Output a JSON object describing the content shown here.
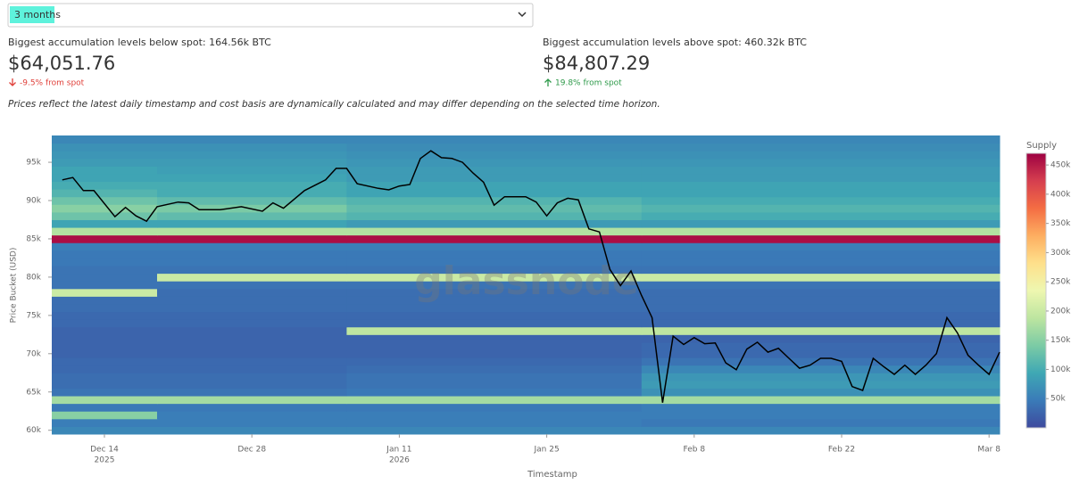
{
  "dropdown": {
    "selected": "3 months"
  },
  "below": {
    "label": "Biggest accumulation levels below spot: 164.56k BTC",
    "price": "$64,051.76",
    "change": "-9.5% from spot"
  },
  "above": {
    "label": "Biggest accumulation levels above spot: 460.32k BTC",
    "price": "$84,807.29",
    "change": "19.8% from spot"
  },
  "note": "Prices reflect the latest daily timestamp and cost basis are dynamically calculated and may differ depending on the selected time horizon.",
  "chart_data": {
    "type": "heatmap",
    "watermark": "glassnode",
    "xlabel": "Timestamp",
    "ylabel": "Price Bucket (USD)",
    "xlim": [
      "2025-12-09",
      "2026-03-09"
    ],
    "xticks": [
      {
        "value": "2025-12-14",
        "label": "Dec 14",
        "sublabel": "2025"
      },
      {
        "value": "2025-12-28",
        "label": "Dec 28"
      },
      {
        "value": "2026-01-11",
        "label": "Jan 11",
        "sublabel": "2026"
      },
      {
        "value": "2026-01-25",
        "label": "Jan 25"
      },
      {
        "value": "2026-02-08",
        "label": "Feb 8"
      },
      {
        "value": "2026-02-22",
        "label": "Feb 22"
      },
      {
        "value": "2026-03-08",
        "label": "Mar 8"
      }
    ],
    "ylim": [
      59500,
      98500
    ],
    "yticks": [
      {
        "value": 60000,
        "label": "60k"
      },
      {
        "value": 65000,
        "label": "65k"
      },
      {
        "value": 70000,
        "label": "70k"
      },
      {
        "value": 75000,
        "label": "75k"
      },
      {
        "value": 80000,
        "label": "80k"
      },
      {
        "value": 85000,
        "label": "85k"
      },
      {
        "value": 90000,
        "label": "90k"
      },
      {
        "value": 95000,
        "label": "95k"
      }
    ],
    "bucket_size": 1000,
    "y_buckets": [
      60000,
      61000,
      62000,
      63000,
      64000,
      65000,
      66000,
      67000,
      68000,
      69000,
      70000,
      71000,
      72000,
      73000,
      74000,
      75000,
      76000,
      77000,
      78000,
      79000,
      80000,
      81000,
      82000,
      83000,
      84000,
      85000,
      86000,
      87000,
      88000,
      89000,
      90000,
      91000,
      92000,
      93000,
      94000,
      95000,
      96000,
      97000,
      98000
    ],
    "x_edges": [
      "2025-12-09",
      "2025-12-19",
      "2026-01-06",
      "2026-02-03",
      "2026-03-09"
    ],
    "z": [
      [
        60000,
        60000,
        60000,
        60000
      ],
      [
        50000,
        50000,
        50000,
        45000
      ],
      [
        150000,
        50000,
        50000,
        50000
      ],
      [
        45000,
        45000,
        45000,
        50000
      ],
      [
        170000,
        170000,
        170000,
        170000
      ],
      [
        40000,
        40000,
        45000,
        70000
      ],
      [
        35000,
        35000,
        40000,
        80000
      ],
      [
        35000,
        35000,
        40000,
        75000
      ],
      [
        30000,
        30000,
        35000,
        60000
      ],
      [
        30000,
        30000,
        30000,
        40000
      ],
      [
        25000,
        25000,
        25000,
        30000
      ],
      [
        25000,
        25000,
        25000,
        30000
      ],
      [
        25000,
        25000,
        25000,
        25000
      ],
      [
        25000,
        25000,
        190000,
        190000
      ],
      [
        30000,
        30000,
        30000,
        30000
      ],
      [
        30000,
        30000,
        30000,
        30000
      ],
      [
        35000,
        35000,
        35000,
        35000
      ],
      [
        35000,
        35000,
        35000,
        35000
      ],
      [
        200000,
        35000,
        35000,
        35000
      ],
      [
        40000,
        40000,
        40000,
        40000
      ],
      [
        40000,
        200000,
        200000,
        200000
      ],
      [
        40000,
        40000,
        40000,
        40000
      ],
      [
        45000,
        45000,
        45000,
        45000
      ],
      [
        45000,
        45000,
        45000,
        45000
      ],
      [
        50000,
        50000,
        50000,
        50000
      ],
      [
        460000,
        460000,
        460000,
        460000
      ],
      [
        180000,
        180000,
        180000,
        180000
      ],
      [
        90000,
        90000,
        80000,
        80000
      ],
      [
        130000,
        120000,
        110000,
        100000
      ],
      [
        150000,
        140000,
        120000,
        110000
      ],
      [
        130000,
        120000,
        110000,
        100000
      ],
      [
        110000,
        100000,
        90000,
        90000
      ],
      [
        100000,
        100000,
        90000,
        90000
      ],
      [
        90000,
        90000,
        80000,
        80000
      ],
      [
        90000,
        85000,
        80000,
        80000
      ],
      [
        80000,
        80000,
        75000,
        75000
      ],
      [
        75000,
        75000,
        70000,
        70000
      ],
      [
        70000,
        70000,
        65000,
        65000
      ],
      [
        60000,
        60000,
        60000,
        60000
      ]
    ],
    "colorbar": {
      "title": "Supply",
      "range": [
        0,
        470000
      ],
      "ticks": [
        {
          "value": 50000,
          "label": "50k"
        },
        {
          "value": 100000,
          "label": "100k"
        },
        {
          "value": 150000,
          "label": "150k"
        },
        {
          "value": 200000,
          "label": "200k"
        },
        {
          "value": 250000,
          "label": "250k"
        },
        {
          "value": 300000,
          "label": "300k"
        },
        {
          "value": 350000,
          "label": "350k"
        },
        {
          "value": 400000,
          "label": "400k"
        },
        {
          "value": 450000,
          "label": "450k"
        }
      ]
    },
    "colorscale": [
      "#3e4a9e",
      "#3a7bb8",
      "#3fa8b4",
      "#7ccba5",
      "#bde5a0",
      "#eef7b0",
      "#fee08b",
      "#fdae61",
      "#f46d43",
      "#d53e4f",
      "#9e0142"
    ],
    "line": {
      "color": "#000000",
      "x": [
        "2025-12-10",
        "2025-12-11",
        "2025-12-12",
        "2025-12-13",
        "2025-12-15",
        "2025-12-16",
        "2025-12-17",
        "2025-12-18",
        "2025-12-19",
        "2025-12-21",
        "2025-12-22",
        "2025-12-23",
        "2025-12-25",
        "2025-12-27",
        "2025-12-29",
        "2025-12-30",
        "2025-12-31",
        "2026-01-02",
        "2026-01-04",
        "2026-01-05",
        "2026-01-06",
        "2026-01-07",
        "2026-01-09",
        "2026-01-10",
        "2026-01-11",
        "2026-01-12",
        "2026-01-13",
        "2026-01-14",
        "2026-01-15",
        "2026-01-16",
        "2026-01-17",
        "2026-01-18",
        "2026-01-19",
        "2026-01-20",
        "2026-01-21",
        "2026-01-23",
        "2026-01-24",
        "2026-01-25",
        "2026-01-26",
        "2026-01-27",
        "2026-01-28",
        "2026-01-29",
        "2026-01-30",
        "2026-01-31",
        "2026-02-01",
        "2026-02-02",
        "2026-02-03",
        "2026-02-04",
        "2026-02-05",
        "2026-02-06",
        "2026-02-07",
        "2026-02-08",
        "2026-02-09",
        "2026-02-10",
        "2026-02-11",
        "2026-02-12",
        "2026-02-13",
        "2026-02-14",
        "2026-02-15",
        "2026-02-16",
        "2026-02-17",
        "2026-02-18",
        "2026-02-19",
        "2026-02-20",
        "2026-02-21",
        "2026-02-22",
        "2026-02-23",
        "2026-02-24",
        "2026-02-25",
        "2026-02-26",
        "2026-02-27",
        "2026-02-28",
        "2026-03-01",
        "2026-03-02",
        "2026-03-03",
        "2026-03-04",
        "2026-03-05",
        "2026-03-06",
        "2026-03-07",
        "2026-03-08",
        "2026-03-09"
      ],
      "values": [
        92700,
        93000,
        91300,
        91300,
        87900,
        89100,
        88000,
        87300,
        89200,
        89800,
        89700,
        88800,
        88800,
        89200,
        88600,
        89700,
        89000,
        91300,
        92700,
        94200,
        94200,
        92200,
        91600,
        91400,
        91900,
        92100,
        95500,
        96500,
        95600,
        95500,
        95000,
        93600,
        92400,
        89400,
        90500,
        90500,
        89800,
        88000,
        89700,
        90300,
        90100,
        86300,
        85900,
        81000,
        78900,
        80800,
        77600,
        74700,
        63600,
        72300,
        71200,
        72100,
        71300,
        71400,
        68800,
        67900,
        70600,
        71500,
        70200,
        70700,
        69400,
        68100,
        68500,
        69400,
        69400,
        69000,
        65700,
        65200,
        69400,
        68300,
        67300,
        68500,
        67300,
        68500,
        70000,
        74700,
        72700,
        69800,
        68500,
        67300,
        70200
      ]
    }
  }
}
